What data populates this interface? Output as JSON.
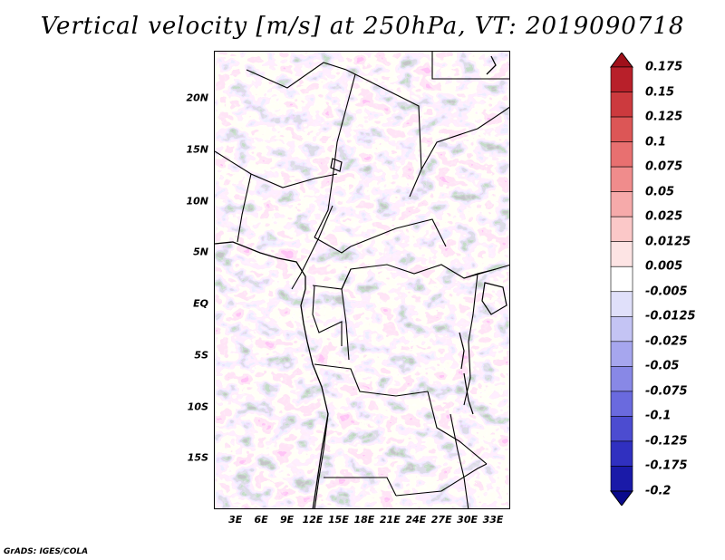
{
  "title": "Vertical velocity [m/s] at 250hPa, VT: 2019090718",
  "credit": "GrADS: IGES/COLA",
  "map": {
    "lat_labels": [
      "20N",
      "15N",
      "10N",
      "5N",
      "EQ",
      "5S",
      "10S",
      "15S"
    ],
    "lat_values": [
      20,
      15,
      10,
      5,
      0,
      -5,
      -10,
      -15
    ],
    "lon_labels": [
      "3E",
      "6E",
      "9E",
      "12E",
      "15E",
      "18E",
      "21E",
      "24E",
      "27E",
      "30E",
      "33E"
    ],
    "lon_values": [
      3,
      6,
      9,
      12,
      15,
      18,
      21,
      24,
      27,
      30,
      33
    ],
    "lat_range": [
      -20,
      24.6
    ],
    "lon_range": [
      0.5,
      35
    ]
  },
  "colorbar": {
    "labels": [
      "0.175",
      "0.15",
      "0.125",
      "0.1",
      "0.075",
      "0.05",
      "0.025",
      "0.0125",
      "0.005",
      "-0.005",
      "-0.0125",
      "-0.025",
      "-0.05",
      "-0.075",
      "-0.1",
      "-0.125",
      "-0.175",
      "-0.2"
    ],
    "colors": [
      "#a0101a",
      "#b8202a",
      "#cc3a3e",
      "#dc5656",
      "#e87070",
      "#f08c8c",
      "#f6aaaa",
      "#fbc8c8",
      "#fde4e4",
      "#ffffff",
      "#e0e0fa",
      "#c4c4f4",
      "#a6a6ee",
      "#8888e6",
      "#6a6ade",
      "#4c4cd0",
      "#3030c0",
      "#1a1aa8",
      "#0a0a8c"
    ]
  }
}
